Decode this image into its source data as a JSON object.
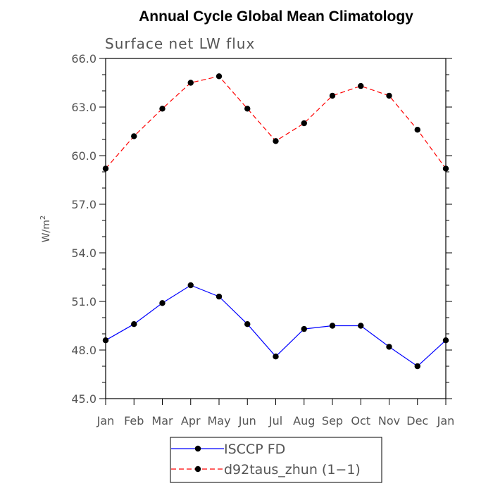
{
  "chart_data": {
    "type": "line",
    "title": "Annual Cycle Global Mean Climatology",
    "subtitle": "Surface net LW flux",
    "ylabel": "W/m",
    "ylabel_superscript": "2",
    "xlabel": "",
    "ylim": [
      45.0,
      66.0
    ],
    "yticks": [
      "45.0",
      "48.0",
      "51.0",
      "54.0",
      "57.0",
      "60.0",
      "63.0",
      "66.0"
    ],
    "categories": [
      "Jan",
      "Feb",
      "Mar",
      "Apr",
      "May",
      "Jun",
      "Jul",
      "Aug",
      "Sep",
      "Oct",
      "Nov",
      "Dec",
      "Jan"
    ],
    "grid": false,
    "legend_position": "bottom",
    "series": [
      {
        "name": "ISCCP FD",
        "color": "#0000ff",
        "style": "solid",
        "values": [
          48.6,
          49.6,
          50.9,
          52.0,
          51.3,
          49.6,
          47.6,
          49.3,
          49.5,
          49.5,
          48.2,
          47.0,
          48.6
        ]
      },
      {
        "name": "d92taus_zhun (1−1)",
        "color": "#ff0000",
        "style": "dashed",
        "values": [
          59.2,
          61.2,
          62.9,
          64.5,
          64.9,
          62.9,
          60.9,
          62.0,
          63.7,
          64.3,
          63.7,
          61.6,
          59.2
        ]
      }
    ]
  }
}
